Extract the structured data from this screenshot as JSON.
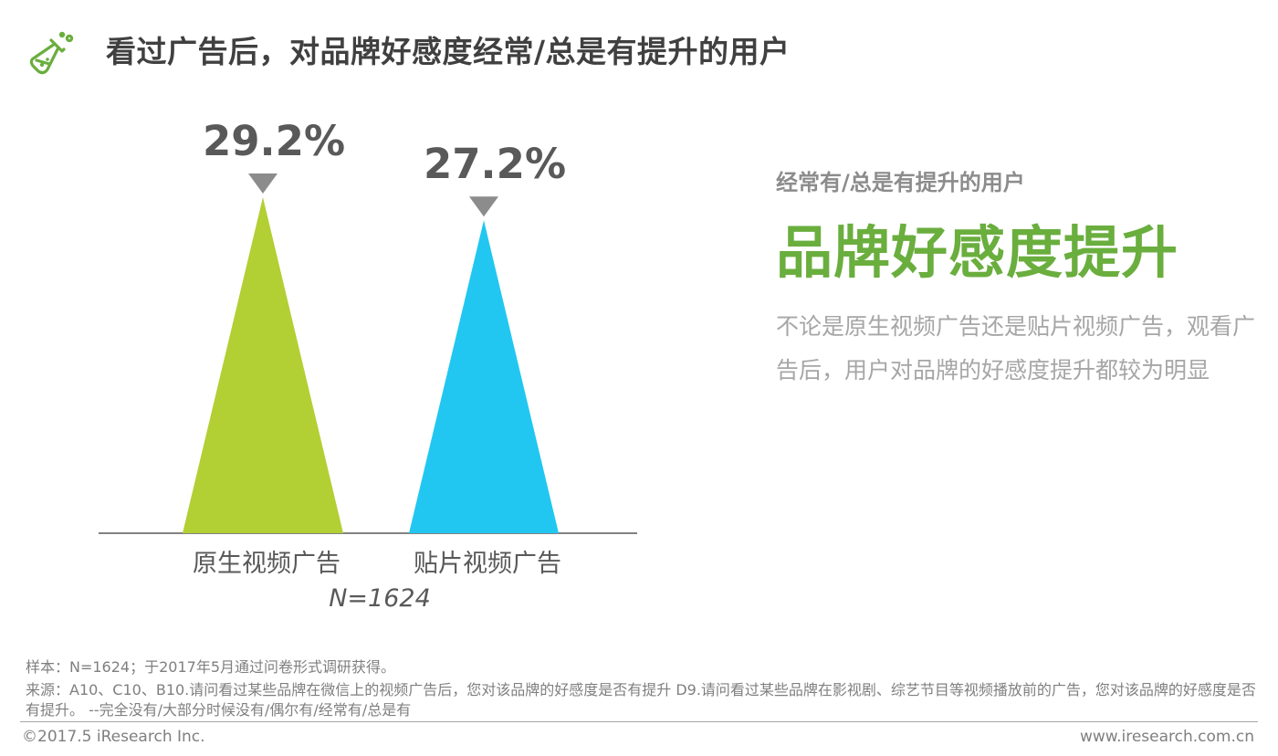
{
  "header": {
    "title": "看过广告后，对品牌好感度经常/总是有提升的用户",
    "logo_icon": "flask-icon",
    "logo_color": "#6aae3e"
  },
  "chart_data": {
    "type": "bar",
    "shape": "triangle",
    "categories": [
      "原生视频广告",
      "贴片视频广告"
    ],
    "values": [
      29.2,
      27.2
    ],
    "value_labels": [
      "29.2%",
      "27.2%"
    ],
    "colors": [
      "#b2cf34",
      "#21c7f1"
    ],
    "marker_color": "#8c8c8c",
    "sample_label": "N=1624",
    "ylim": [
      0,
      29.2
    ],
    "title": "",
    "xlabel": "",
    "ylabel": ""
  },
  "insight": {
    "subtitle": "经常有/总是有提升的用户",
    "headline": "品牌好感度提升",
    "body": "不论是原生视频广告还是贴片视频广告，观看广告后，用户对品牌的好感度提升都较为明显",
    "headline_color": "#6aae3e"
  },
  "notes": {
    "sample": "样本：N=1624；于2017年5月通过问卷形式调研获得。",
    "source": "来源：A10、C10、B10.请问看过某些品牌在微信上的视频广告后，您对该品牌的好感度是否有提升 D9.请问看过某些品牌在影视剧、综艺节目等视频播放前的广告，您对该品牌的好感度是否有提升。 --完全没有/大部分时候没有/偶尔有/经常有/总是有"
  },
  "footer": {
    "copyright": "©2017.5 iResearch Inc.",
    "website": "www.iresearch.com.cn"
  }
}
